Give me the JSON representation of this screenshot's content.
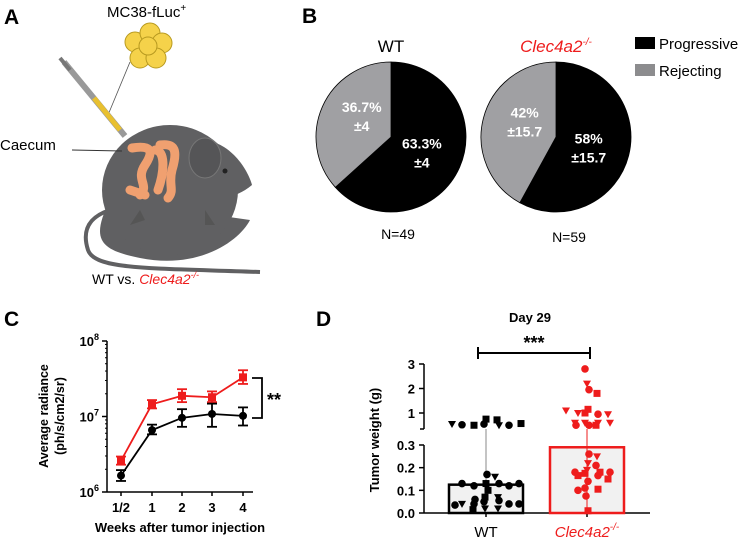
{
  "colors": {
    "red": "#ee1c1c",
    "black": "#000000",
    "gray": "#a0a0a3",
    "mouse": "#606062",
    "gut": "#f0a070",
    "cells": "#f5d24a"
  },
  "panelA": {
    "label": "A",
    "cells_label": "MC38-fLuc",
    "cells_sup": "+",
    "caecum_label": "Caecum",
    "compare_prefix": "WT vs. ",
    "compare_gene": "Clec4a2",
    "compare_sup": "-/-"
  },
  "chart_data": [
    {
      "panel": "B",
      "type": "pie",
      "legend": {
        "entries": [
          "Progressive",
          "Rejecting"
        ],
        "placement": "top-right"
      },
      "pies": [
        {
          "title": "WT",
          "n_label": "N=49",
          "slices": [
            {
              "name": "Progressive",
              "value": 63.3,
              "label": "63.3%",
              "err": "±4"
            },
            {
              "name": "Rejecting",
              "value": 36.7,
              "label": "36.7%",
              "err": "±4"
            }
          ]
        },
        {
          "title": "Clec4a2",
          "title_sup": "-/-",
          "n_label": "N=59",
          "slices": [
            {
              "name": "Progressive",
              "value": 58,
              "label": "58%",
              "err": "±15.7"
            },
            {
              "name": "Rejecting",
              "value": 42,
              "label": "42%",
              "err": "±15.7"
            }
          ]
        }
      ]
    },
    {
      "panel": "C",
      "type": "line",
      "yscale": "log",
      "ylim": [
        1000000,
        100000000
      ],
      "ylabel": "Average radiance",
      "ylabel2": "(ph/s/cm2/sr)",
      "xlabel": "Weeks after tumor injection",
      "yticks": [
        {
          "base": "10",
          "exp": "6"
        },
        {
          "base": "10",
          "exp": "7"
        },
        {
          "base": "10",
          "exp": "8"
        }
      ],
      "categories": [
        "1/2",
        "1",
        "2",
        "3",
        "4"
      ],
      "series": [
        {
          "name": "Clec4a2-/-",
          "color": "#ee1c1c",
          "marker": "square",
          "values": [
            2600000,
            14500000,
            18800000,
            18000000,
            33000000
          ],
          "err_low": [
            2300000,
            12800000,
            15500000,
            15500000,
            27000000
          ],
          "err_high": [
            2950000,
            16500000,
            23000000,
            21500000,
            41000000
          ]
        },
        {
          "name": "WT",
          "color": "#000000",
          "marker": "circle",
          "values": [
            1650000,
            6600000,
            9600000,
            10800000,
            10200000
          ],
          "err_low": [
            1400000,
            5800000,
            7300000,
            7300000,
            7600000
          ],
          "err_high": [
            1950000,
            7800000,
            12500000,
            14800000,
            13200000
          ]
        }
      ],
      "significance": "**"
    },
    {
      "panel": "D",
      "type": "bar",
      "title": "Day 29",
      "ylabel": "Tumor weight (g)",
      "yaxis_break": true,
      "yticks_lower": [
        "0.0",
        "0.1",
        "0.2",
        "0.3"
      ],
      "yticks_upper": [
        "1",
        "2",
        "3"
      ],
      "categories": [
        "WT",
        "Clec4a2"
      ],
      "category_sup": [
        "",
        "-/-"
      ],
      "significance": "***",
      "bars": [
        {
          "name": "WT",
          "value": 0.125,
          "color": "#000000",
          "points": [
            {
              "v": 0.55,
              "s": "c"
            },
            {
              "v": 0.75,
              "s": "s"
            },
            {
              "v": 0.5,
              "s": "t"
            },
            {
              "v": 0.5,
              "s": "s"
            },
            {
              "v": 0.5,
              "s": "c"
            },
            {
              "v": 0.52,
              "s": "c"
            },
            {
              "v": 0.72,
              "s": "s"
            },
            {
              "v": 0.57,
              "s": "s"
            },
            {
              "v": 0.55,
              "s": "t"
            },
            {
              "v": 0.17,
              "s": "c"
            },
            {
              "v": 0.16,
              "s": "t"
            },
            {
              "v": 0.13,
              "s": "s"
            },
            {
              "v": 0.13,
              "s": "c"
            },
            {
              "v": 0.12,
              "s": "c"
            },
            {
              "v": 0.12,
              "s": "c"
            },
            {
              "v": 0.13,
              "s": "c"
            },
            {
              "v": 0.13,
              "s": "c"
            },
            {
              "v": 0.1,
              "s": "s"
            },
            {
              "v": 0.07,
              "s": "s"
            },
            {
              "v": 0.07,
              "s": "t"
            },
            {
              "v": 0.05,
              "s": "c"
            },
            {
              "v": 0.06,
              "s": "c"
            },
            {
              "v": 0.055,
              "s": "c"
            },
            {
              "v": 0.04,
              "s": "c"
            },
            {
              "v": 0.04,
              "s": "c"
            },
            {
              "v": 0.04,
              "s": "t"
            },
            {
              "v": 0.04,
              "s": "c"
            },
            {
              "v": 0.035,
              "s": "c"
            },
            {
              "v": 0.02,
              "s": "t"
            },
            {
              "v": 0.02,
              "s": "t"
            },
            {
              "v": 0.015,
              "s": "s"
            }
          ]
        },
        {
          "name": "Clec4a2-/-",
          "value": 0.29,
          "color": "#ee1c1c",
          "points": [
            {
              "v": 2.8,
              "s": "c"
            },
            {
              "v": 2.2,
              "s": "t"
            },
            {
              "v": 1.95,
              "s": "c"
            },
            {
              "v": 1.8,
              "s": "s"
            },
            {
              "v": 1.15,
              "s": "s"
            },
            {
              "v": 1.0,
              "s": "s"
            },
            {
              "v": 0.95,
              "s": "c"
            },
            {
              "v": 1.0,
              "s": "t"
            },
            {
              "v": 0.95,
              "s": "t"
            },
            {
              "v": 1.1,
              "s": "t"
            },
            {
              "v": 0.6,
              "s": "t"
            },
            {
              "v": 0.6,
              "s": "t"
            },
            {
              "v": 0.5,
              "s": "c"
            },
            {
              "v": 0.6,
              "s": "t"
            },
            {
              "v": 0.6,
              "s": "t"
            },
            {
              "v": 0.5,
              "s": "s"
            },
            {
              "v": 0.5,
              "s": "c"
            },
            {
              "v": 0.26,
              "s": "c"
            },
            {
              "v": 0.25,
              "s": "t"
            },
            {
              "v": 0.22,
              "s": "t"
            },
            {
              "v": 0.21,
              "s": "c"
            },
            {
              "v": 0.19,
              "s": "t"
            },
            {
              "v": 0.18,
              "s": "s"
            },
            {
              "v": 0.18,
              "s": "c"
            },
            {
              "v": 0.18,
              "s": "c"
            },
            {
              "v": 0.175,
              "s": "s"
            },
            {
              "v": 0.165,
              "s": "c"
            },
            {
              "v": 0.165,
              "s": "s"
            },
            {
              "v": 0.15,
              "s": "s"
            },
            {
              "v": 0.14,
              "s": "c"
            },
            {
              "v": 0.11,
              "s": "c"
            },
            {
              "v": 0.105,
              "s": "s"
            },
            {
              "v": 0.1,
              "s": "c"
            },
            {
              "v": 0.075,
              "s": "c"
            },
            {
              "v": 0.01,
              "s": "s"
            }
          ]
        }
      ]
    }
  ]
}
